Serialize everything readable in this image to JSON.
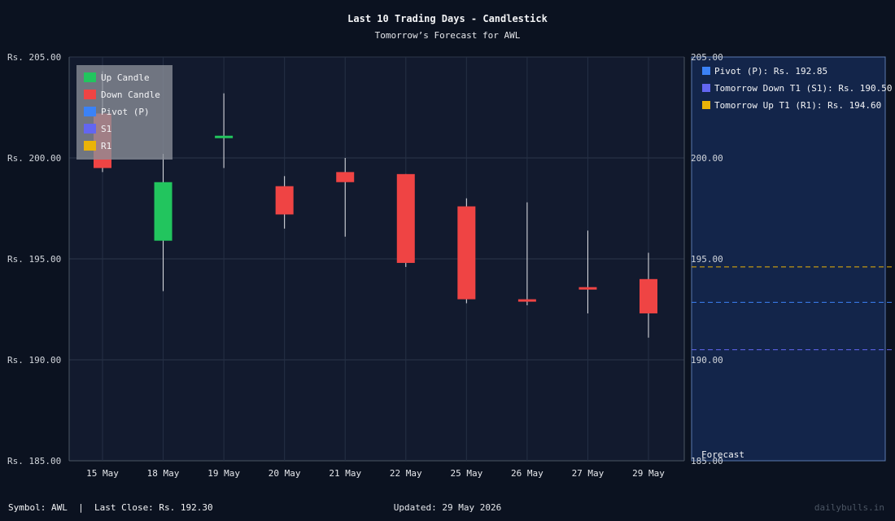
{
  "chart_data": {
    "type": "candlestick",
    "title": "Last 10 Trading Days - Candlestick",
    "subtitle": "Tomorrow’s Forecast for AWL",
    "categories": [
      "15 May",
      "18 May",
      "19 May",
      "20 May",
      "21 May",
      "22 May",
      "25 May",
      "26 May",
      "27 May",
      "29 May"
    ],
    "open": [
      202.2,
      195.9,
      201.0,
      198.6,
      199.3,
      199.2,
      197.6,
      193.0,
      193.6,
      194.0
    ],
    "high": [
      204.3,
      200.2,
      203.2,
      199.1,
      200.0,
      199.2,
      198.0,
      197.8,
      196.4,
      195.3
    ],
    "low": [
      199.3,
      193.4,
      199.5,
      196.5,
      196.1,
      194.6,
      192.8,
      192.7,
      192.3,
      191.1
    ],
    "close": [
      199.5,
      198.8,
      201.1,
      197.2,
      198.8,
      194.8,
      193.0,
      192.9,
      193.5,
      192.3
    ],
    "ylim": [
      185,
      205
    ],
    "yticks": [
      185,
      190,
      195,
      200,
      205
    ],
    "ytick_labels": [
      "Rs. 185.00",
      "Rs. 190.00",
      "Rs. 195.00",
      "Rs. 200.00",
      "Rs. 205.00"
    ],
    "grid": true,
    "legend_position": "top-left",
    "legend": [
      {
        "label": "Up Candle",
        "color": "#22c55e"
      },
      {
        "label": "Down Candle",
        "color": "#ef4444"
      },
      {
        "label": "Pivot (P)",
        "color": "#3b82f6"
      },
      {
        "label": "S1",
        "color": "#6366f1"
      },
      {
        "label": "R1",
        "color": "#eab308"
      }
    ],
    "forecast": {
      "label": "Forecast",
      "levels": [
        {
          "label": "Pivot (P): Rs. 192.85",
          "value": 192.85,
          "color": "#3b82f6"
        },
        {
          "label": "Tomorrow Down T1 (S1): Rs. 190.50",
          "value": 190.5,
          "color": "#6366f1"
        },
        {
          "label": "Tomorrow Up T1 (R1): Rs. 194.60",
          "value": 194.6,
          "color": "#eab308"
        }
      ]
    },
    "colors": {
      "up": "#22c55e",
      "down": "#ef4444"
    }
  },
  "footer": {
    "symbol_info": "Symbol: AWL  |  Last Close: Rs. 192.30",
    "updated": "Updated: 29 May 2026",
    "watermark": "dailybulls.in"
  }
}
